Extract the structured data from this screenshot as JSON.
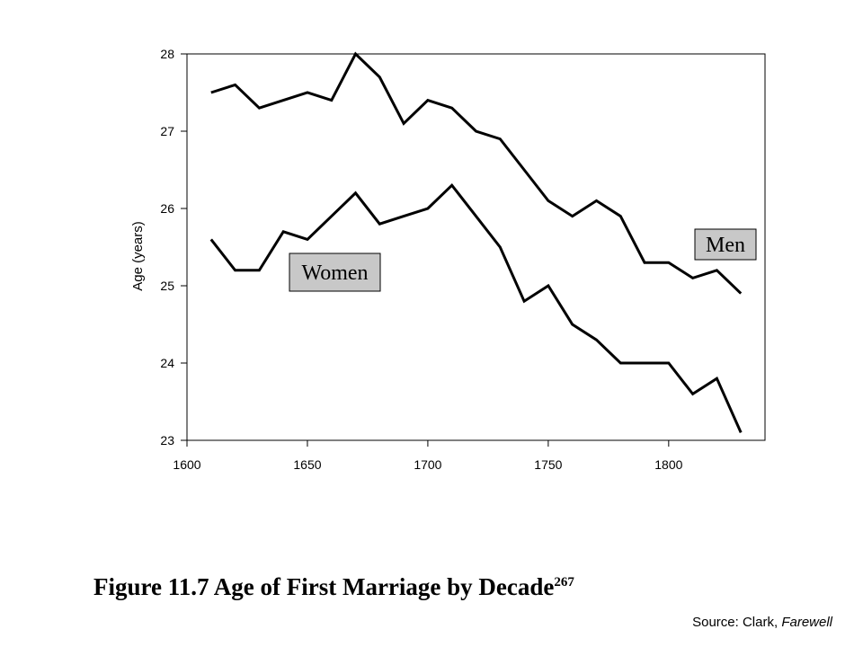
{
  "chart_data": {
    "type": "line",
    "title": "",
    "xlabel": "",
    "ylabel": "Age (years)",
    "xlim": [
      1600,
      1840
    ],
    "ylim": [
      23,
      28
    ],
    "x_ticks": [
      1600,
      1650,
      1700,
      1750,
      1800
    ],
    "y_ticks": [
      23,
      24,
      25,
      26,
      27,
      28
    ],
    "grid": false,
    "x": [
      1610,
      1620,
      1630,
      1640,
      1650,
      1660,
      1670,
      1680,
      1690,
      1700,
      1710,
      1720,
      1730,
      1740,
      1750,
      1760,
      1770,
      1780,
      1790,
      1800,
      1810,
      1820,
      1830
    ],
    "series": [
      {
        "name": "Men",
        "values": [
          27.5,
          27.6,
          27.3,
          27.4,
          27.5,
          27.4,
          28.0,
          27.7,
          27.1,
          27.4,
          27.3,
          27.0,
          26.9,
          26.5,
          26.1,
          25.9,
          26.1,
          25.9,
          25.3,
          25.3,
          25.1,
          25.2,
          24.9
        ]
      },
      {
        "name": "Women",
        "values": [
          25.6,
          25.2,
          25.2,
          25.7,
          25.6,
          25.9,
          26.2,
          25.8,
          25.9,
          26.0,
          26.3,
          25.9,
          25.5,
          24.8,
          25.0,
          24.5,
          24.3,
          24.0,
          24.0,
          24.0,
          23.6,
          23.8,
          23.1
        ]
      }
    ],
    "line_color": "#000000",
    "label_box_color": "#c8c8c8"
  },
  "caption": {
    "text": "Figure 11.7  Age of First Marriage by Decade",
    "superscript": "267"
  },
  "source": {
    "prefix": "Source: Clark, ",
    "italic": "Farewell"
  }
}
